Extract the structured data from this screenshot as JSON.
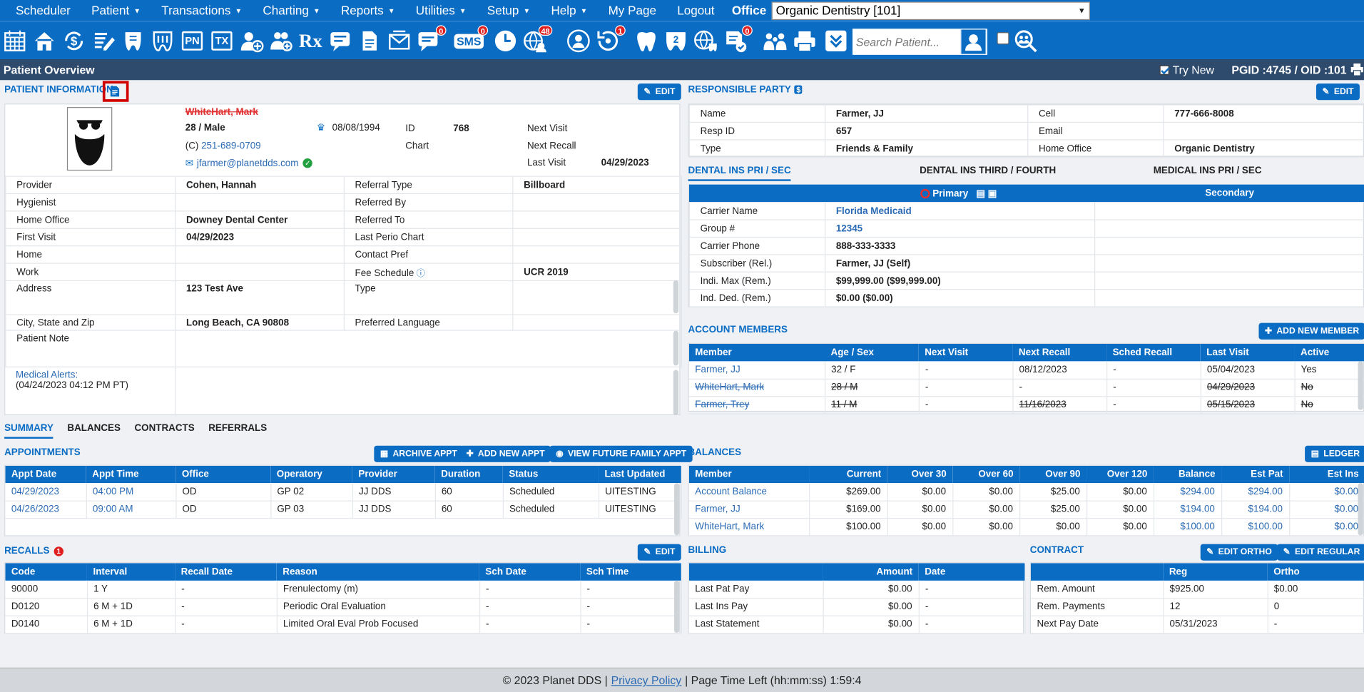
{
  "menu": {
    "items": [
      {
        "label": "Scheduler",
        "caret": false
      },
      {
        "label": "Patient",
        "caret": true
      },
      {
        "label": "Transactions",
        "caret": true
      },
      {
        "label": "Charting",
        "caret": true
      },
      {
        "label": "Reports",
        "caret": true
      },
      {
        "label": "Utilities",
        "caret": true
      },
      {
        "label": "Setup",
        "caret": true
      },
      {
        "label": "Help",
        "caret": true
      },
      {
        "label": "My Page",
        "caret": false
      },
      {
        "label": "Logout",
        "caret": false
      }
    ],
    "office_label": "Office",
    "office_value": "Organic Dentistry [101]"
  },
  "toolbar": {
    "badges": {
      "chat": "0",
      "sms": "0",
      "online": "48",
      "recall": "1",
      "form": "0"
    },
    "sms_text": "SMS",
    "pn_text": "PN",
    "tx_text": "TX",
    "rx_text": "Rx",
    "search_placeholder": "Search Patient..."
  },
  "titlebar": {
    "title": "Patient Overview",
    "try_new": "Try New",
    "pgid": "PGID :4745  /  OID :101"
  },
  "patient": {
    "section_title": "PATIENT INFORMATION",
    "edit": "EDIT",
    "name": "WhiteHart, Mark",
    "age_sex": "28 / Male",
    "dob": "08/08/1994",
    "id_label": "ID",
    "id": "768",
    "chart_label": "Chart",
    "phone_prefix": "(C)",
    "phone": "251-689-0709",
    "email": "jfarmer@planetdds.com",
    "next_visit_label": "Next Visit",
    "next_recall_label": "Next Recall",
    "last_visit_label": "Last Visit",
    "last_visit": "04/29/2023",
    "rows": [
      [
        "Provider",
        "Cohen, Hannah",
        "Referral Type",
        "Billboard"
      ],
      [
        "Hygienist",
        "",
        "Referred By",
        ""
      ],
      [
        "Home Office",
        "Downey Dental Center",
        "Referred To",
        ""
      ],
      [
        "First Visit",
        "04/29/2023",
        "Last Perio Chart",
        ""
      ],
      [
        "Home",
        "",
        "Contact Pref",
        ""
      ],
      [
        "Work",
        "",
        "Fee Schedule",
        "UCR 2019"
      ],
      [
        "Address",
        "123 Test Ave",
        "Type",
        ""
      ],
      [
        "City, State and Zip",
        "Long Beach, CA 90808",
        "Preferred Language",
        ""
      ],
      [
        "Patient Note",
        "",
        "",
        ""
      ]
    ],
    "medical_alerts_label": "Medical Alerts:",
    "medical_alerts_date": "(04/24/2023 04:12 PM PT)"
  },
  "resp": {
    "title": "RESPONSIBLE PARTY",
    "edit": "EDIT",
    "rows": [
      [
        "Name",
        "Farmer, JJ",
        "Cell",
        "777-666-8008"
      ],
      [
        "Resp ID",
        "657",
        "Email",
        ""
      ],
      [
        "Type",
        "Friends & Family",
        "Home Office",
        "Organic Dentistry"
      ]
    ]
  },
  "ins": {
    "tabs": [
      "DENTAL INS PRI / SEC",
      "DENTAL INS THIRD / FOURTH",
      "MEDICAL INS PRI / SEC"
    ],
    "primary": "Primary",
    "secondary": "Secondary",
    "rows": [
      [
        "Carrier Name",
        "Florida Medicaid"
      ],
      [
        "Group #",
        "12345"
      ],
      [
        "Carrier Phone",
        "888-333-3333"
      ],
      [
        "Subscriber (Rel.)",
        "Farmer, JJ (Self)"
      ],
      [
        "Indi. Max (Rem.)",
        "$99,999.00 ($99,999.00)"
      ],
      [
        "Ind. Ded. (Rem.)",
        "$0.00 ($0.00)"
      ]
    ]
  },
  "members": {
    "title": "ACCOUNT MEMBERS",
    "add": "ADD NEW MEMBER",
    "headers": [
      "Member",
      "Age / Sex",
      "Next Visit",
      "Next Recall",
      "Sched Recall",
      "Last Visit",
      "Active"
    ],
    "rows": [
      {
        "cells": [
          "Farmer, JJ",
          "32 / F",
          "-",
          "08/12/2023",
          "-",
          "05/04/2023",
          "Yes"
        ],
        "struck": false
      },
      {
        "cells": [
          "WhiteHart, Mark",
          "28 / M",
          "-",
          "-",
          "-",
          "04/29/2023",
          "No"
        ],
        "struck": true
      },
      {
        "cells": [
          "Farmer, Trey",
          "11 / M",
          "-",
          "11/16/2023",
          "-",
          "05/15/2023",
          "No"
        ],
        "struck": true
      }
    ]
  },
  "lower_tabs": [
    "SUMMARY",
    "BALANCES",
    "CONTRACTS",
    "REFERRALS"
  ],
  "appointments": {
    "title": "APPOINTMENTS",
    "buttons": [
      "ARCHIVE APPT",
      "ADD NEW APPT",
      "VIEW FUTURE FAMILY APPT"
    ],
    "headers": [
      "Appt Date",
      "Appt Time",
      "Office",
      "Operatory",
      "Provider",
      "Duration",
      "Status",
      "Last Updated"
    ],
    "rows": [
      [
        "04/29/2023",
        "04:00 PM",
        "OD",
        "GP 02",
        "JJ DDS",
        "60",
        "Scheduled",
        "UITESTING"
      ],
      [
        "04/26/2023",
        "09:00 AM",
        "OD",
        "GP 03",
        "JJ DDS",
        "60",
        "Scheduled",
        "UITESTING"
      ]
    ]
  },
  "balances": {
    "title": "BALANCES",
    "ledger": "LEDGER",
    "headers": [
      "Member",
      "Current",
      "Over 30",
      "Over 60",
      "Over 90",
      "Over 120",
      "Balance",
      "Est Pat",
      "Est Ins"
    ],
    "rows": [
      [
        "Account Balance",
        "$269.00",
        "$0.00",
        "$0.00",
        "$25.00",
        "$0.00",
        "$294.00",
        "$294.00",
        "$0.00"
      ],
      [
        "Farmer, JJ",
        "$169.00",
        "$0.00",
        "$0.00",
        "$25.00",
        "$0.00",
        "$194.00",
        "$194.00",
        "$0.00"
      ],
      [
        "WhiteHart, Mark",
        "$100.00",
        "$0.00",
        "$0.00",
        "$0.00",
        "$0.00",
        "$100.00",
        "$100.00",
        "$0.00"
      ]
    ]
  },
  "recalls": {
    "title": "RECALLS",
    "badge": "1",
    "edit": "EDIT",
    "headers": [
      "Code",
      "Interval",
      "Recall Date",
      "Reason",
      "Sch Date",
      "Sch Time"
    ],
    "rows": [
      [
        "90000",
        "1 Y",
        "-",
        "Frenulectomy (m)",
        "-",
        "-"
      ],
      [
        "D0120",
        "6 M + 1D",
        "-",
        "Periodic Oral Evaluation",
        "-",
        "-"
      ],
      [
        "D0140",
        "6 M + 1D",
        "-",
        "Limited Oral Eval Prob Focused",
        "-",
        "-"
      ]
    ]
  },
  "billing": {
    "title": "BILLING",
    "headers": [
      "",
      "Amount",
      "Date"
    ],
    "rows": [
      [
        "Last Pat Pay",
        "$0.00",
        "-"
      ],
      [
        "Last Ins Pay",
        "$0.00",
        "-"
      ],
      [
        "Last Statement",
        "$0.00",
        "-"
      ]
    ]
  },
  "contract": {
    "title": "CONTRACT",
    "edit_ortho": "EDIT ORTHO",
    "edit_regular": "EDIT REGULAR",
    "headers": [
      "",
      "Reg",
      "Ortho"
    ],
    "rows": [
      [
        "Rem. Amount",
        "$925.00",
        "$0.00"
      ],
      [
        "Rem. Payments",
        "12",
        "0"
      ],
      [
        "Next Pay Date",
        "05/31/2023",
        "-"
      ]
    ]
  },
  "footer": {
    "copyright": "© 2023 Planet DDS |",
    "privacy": "Privacy Policy",
    "time_left": "|  Page Time Left (hh:mm:ss) 1:59:4"
  }
}
